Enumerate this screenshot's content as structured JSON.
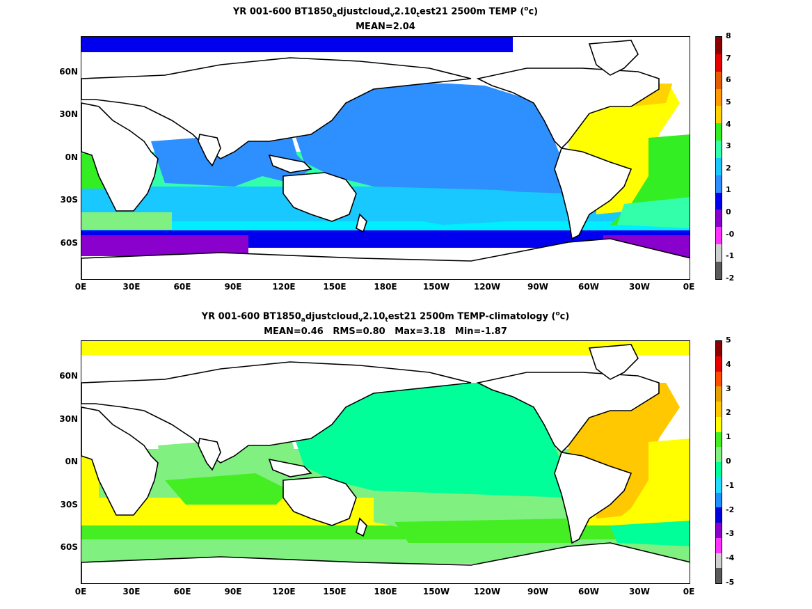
{
  "panel1": {
    "title_parts": [
      "YR 001-600 BT1850",
      "a",
      "djustcloud",
      "v",
      "2.10",
      "t",
      "est21 2500m TEMP (",
      "o",
      "c)"
    ],
    "subtitle": "MEAN=2.04",
    "colorbar_labels": [
      "8",
      "7",
      "6",
      "5",
      "4",
      "3",
      "2",
      "1",
      "0",
      "-0",
      "-1",
      "-2"
    ],
    "colorbar_colors": [
      "#8b0000",
      "#e60000",
      "#e65c00",
      "#ff9a00",
      "#ffd200",
      "#33ee22",
      "#33ffaa",
      "#19c8ff",
      "#2e8fff",
      "#0000ee",
      "#8a00cc",
      "#ff33ff",
      "#cfcfcf",
      "#5a5a5a"
    ]
  },
  "panel2": {
    "title_parts": [
      "YR 001-600 BT1850",
      "a",
      "djustcloud",
      "v",
      "2.10",
      "t",
      "est21 2500m TEMP-climatology (",
      "o",
      "c)"
    ],
    "subtitle": "MEAN=0.46   RMS=0.80   Max=3.18   Min=-1.87",
    "colorbar_labels": [
      "5",
      "4",
      "3",
      "2",
      "1",
      "0",
      "-1",
      "-2",
      "-3",
      "-4",
      "-5"
    ],
    "colorbar_colors": [
      "#8b0000",
      "#e60000",
      "#ff4d00",
      "#e6a000",
      "#ffc800",
      "#ffff00",
      "#44ee22",
      "#80f080",
      "#00ff99",
      "#22ddff",
      "#1e90ff",
      "#0000dd",
      "#8a00cc",
      "#ff33ff",
      "#cfcfcf",
      "#5a5a5a"
    ]
  },
  "axes": {
    "y_ticks": [
      "60N",
      "30N",
      "0N",
      "30S",
      "60S"
    ],
    "x_ticks": [
      "0E",
      "30E",
      "60E",
      "90E",
      "120E",
      "150E",
      "180E",
      "150W",
      "120W",
      "90W",
      "60W",
      "30W",
      "0E"
    ]
  },
  "map_colors": {
    "land": "#ffffff",
    "coast": "#000000"
  }
}
